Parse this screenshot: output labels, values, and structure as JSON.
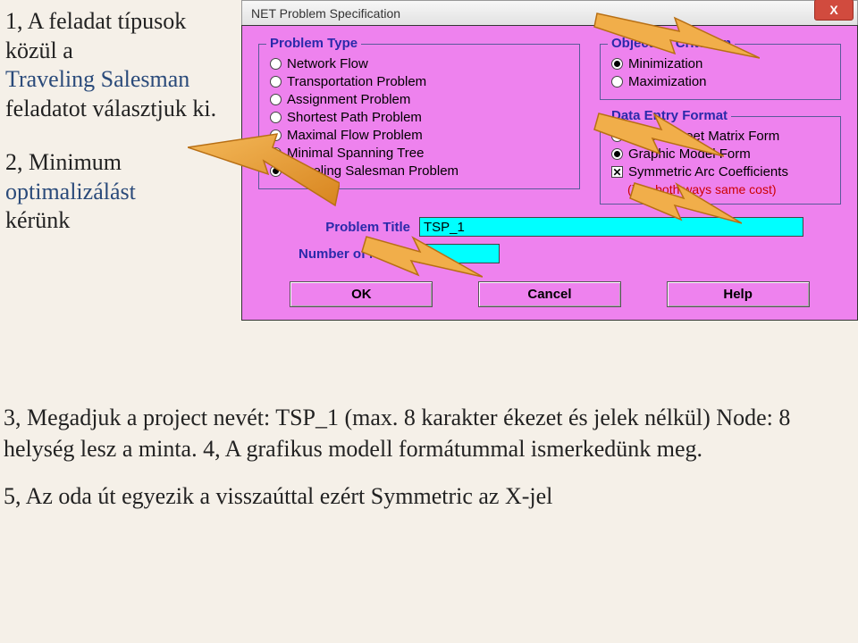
{
  "left": {
    "p1a": "1, A feladat típusok közül a",
    "p1b": "Traveling Salesman",
    "p1c": "feladatot választjuk ki.",
    "p2a": "2, Minimum",
    "p2b": "optimalizálást",
    "p2c": "kérünk"
  },
  "dialog": {
    "title": "NET Problem Specification",
    "close": "X",
    "problem_type": {
      "legend": "Problem Type",
      "opts": [
        {
          "label": "Network Flow",
          "sel": false
        },
        {
          "label": "Transportation Problem",
          "sel": false
        },
        {
          "label": "Assignment Problem",
          "sel": false
        },
        {
          "label": "Shortest Path Problem",
          "sel": false
        },
        {
          "label": "Maximal Flow Problem",
          "sel": false
        },
        {
          "label": "Minimal Spanning Tree",
          "sel": false
        },
        {
          "label": "Traveling Salesman Problem",
          "sel": true
        }
      ]
    },
    "objective": {
      "legend": "Objective Criterion",
      "opts": [
        {
          "label": "Minimization",
          "sel": true
        },
        {
          "label": "Maximization",
          "sel": false
        }
      ]
    },
    "data_entry": {
      "legend": "Data Entry Format",
      "opts": [
        {
          "label": "Spreadsheet Matrix Form",
          "sel": false
        },
        {
          "label": "Graphic Model Form",
          "sel": true
        }
      ],
      "sym_label": "Symmetric Arc Coefficients",
      "sym_checked": true,
      "sym_hint": "(i.e., both ways same cost)"
    },
    "fields": {
      "title_label": "Problem Title",
      "title_value": "TSP_1",
      "nodes_label": "Number of Nodes",
      "nodes_value": "8"
    },
    "buttons": {
      "ok": "OK",
      "cancel": "Cancel",
      "help": "Help"
    }
  },
  "bottom": {
    "p3": "3, Megadjuk a project  nevét: TSP_1 (max. 8 karakter ékezet és jelek nélkül)  Node: 8  helység lesz a minta. 4, A grafikus modell formátummal ismerkedünk meg.",
    "p5": "5, Az oda út egyezik a visszaúttal ezért Symmetric az X-jel"
  },
  "arrow_color": "#e8a23a",
  "arrow_stroke": "#c77f1a"
}
